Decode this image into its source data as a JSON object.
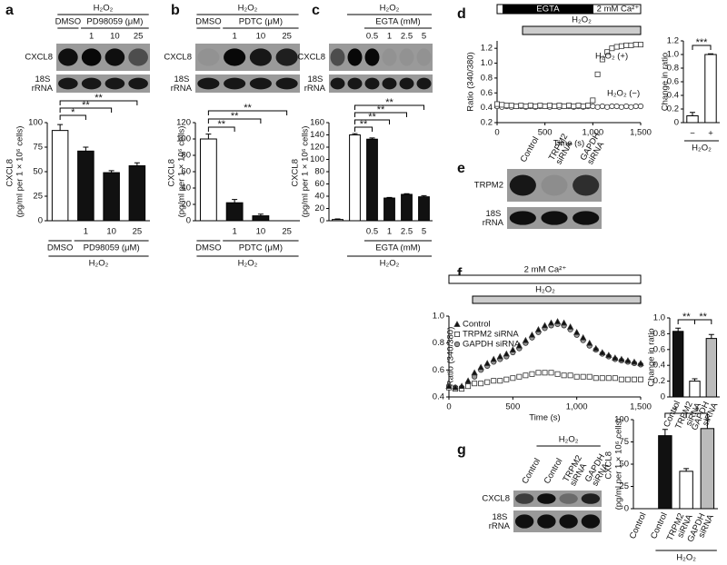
{
  "panels": [
    "a",
    "b",
    "c",
    "d",
    "e",
    "f",
    "g"
  ],
  "blots": [
    {
      "header": "H₂O₂",
      "groups": [
        "DMSO",
        "PD98059 (μM)"
      ],
      "lanes": [
        "1",
        "10",
        "25"
      ],
      "rows": [
        "CXCL8",
        "18S rRNA"
      ]
    },
    {
      "header": "H₂O₂",
      "groups": [
        "DMSO",
        "PDTC (μM)"
      ],
      "lanes": [
        "1",
        "10",
        "25"
      ],
      "rows": [
        "CXCL8",
        "18S rRNA"
      ]
    },
    {
      "header": "H₂O₂",
      "groups": [
        "EGTA (mM)"
      ],
      "lanes": [
        "0.5",
        "1",
        "2.5",
        "5"
      ],
      "rows": [
        "CXCL8",
        "18S rRNA"
      ]
    },
    {
      "lanes": [
        "Control",
        "TRPM2 siRNA",
        "GAPDH siRNA"
      ],
      "rows": [
        "TRPM2",
        "18S rRNA"
      ]
    },
    {
      "header": "H₂O₂",
      "lanes": [
        "Control",
        "Control",
        "TRPM2 siRNA",
        "GAPDH siRNA"
      ],
      "rows": [
        "CXCL8",
        "18S rRNA"
      ]
    }
  ],
  "chart_data": [
    {
      "type": "bar",
      "ylabel": "CXCL8 (pg/ml per 1 × 10⁶ cells)",
      "categories": [
        null,
        "1",
        "10",
        "25"
      ],
      "values": [
        92,
        71,
        49,
        56
      ],
      "errors": [
        6,
        4,
        2,
        3
      ],
      "colors": [
        "#ffffff",
        "#111111",
        "#111111",
        "#111111"
      ],
      "ylim": [
        0,
        100
      ],
      "yticks": [
        0,
        25,
        50,
        75,
        100
      ],
      "groups": [
        "DMSO",
        "PD98059 (μM)"
      ],
      "group_label": "H₂O₂",
      "significance": [
        "*",
        "**",
        "**"
      ]
    },
    {
      "type": "bar",
      "ylabel": "CXCL8 (pg/ml per 1 × 10⁶ cells)",
      "categories": [
        null,
        "1",
        "10",
        "25"
      ],
      "values": [
        100,
        22,
        6,
        0
      ],
      "errors": [
        6,
        4,
        2,
        0
      ],
      "colors": [
        "#ffffff",
        "#111111",
        "#111111",
        "#111111"
      ],
      "ylim": [
        0,
        120
      ],
      "yticks": [
        0,
        20,
        40,
        60,
        80,
        100,
        120
      ],
      "groups": [
        "DMSO",
        "PDTC (μM)"
      ],
      "group_label": "H₂O₂",
      "significance": [
        "**",
        "**",
        "**"
      ]
    },
    {
      "type": "bar",
      "ylabel": "CXCL8 (pg/ml per 1 × 10⁶ cells)",
      "categories": [
        null,
        null,
        "0.5",
        "1",
        "2.5",
        "5"
      ],
      "values": [
        2,
        140,
        133,
        37,
        43,
        39
      ],
      "errors": [
        1,
        2,
        2,
        1,
        1,
        2
      ],
      "colors": [
        "#ffffff",
        "#ffffff",
        "#111111",
        "#111111",
        "#111111",
        "#111111"
      ],
      "ylim": [
        0,
        160
      ],
      "yticks": [
        0,
        20,
        40,
        60,
        80,
        100,
        120,
        140,
        160
      ],
      "groups": [
        "EGTA (mM)"
      ],
      "group_label": "H₂O₂",
      "significance": [
        "**",
        "**",
        "**",
        "**"
      ]
    },
    {
      "type": "line",
      "xlabel": "Time (s)",
      "ylabel": "Ratio (340/380)",
      "annotations": [
        "EGTA",
        "2 mM Ca²⁺",
        "H₂O₂"
      ],
      "x": [
        0,
        50,
        100,
        150,
        200,
        250,
        300,
        350,
        400,
        450,
        500,
        550,
        600,
        650,
        700,
        750,
        800,
        850,
        900,
        950,
        1000,
        1050,
        1100,
        1150,
        1200,
        1250,
        1300,
        1350,
        1400,
        1450,
        1500
      ],
      "series": [
        {
          "name": "H₂O₂ (+)",
          "marker": "square",
          "color": "#ffffff",
          "values": [
            0.45,
            0.44,
            0.43,
            0.43,
            0.42,
            0.43,
            0.42,
            0.43,
            0.42,
            0.43,
            0.42,
            0.43,
            0.42,
            0.43,
            0.42,
            0.43,
            0.42,
            0.43,
            0.42,
            0.43,
            0.5,
            0.85,
            1.05,
            1.15,
            1.2,
            1.22,
            1.23,
            1.24,
            1.24,
            1.25,
            1.25
          ]
        },
        {
          "name": "H₂O₂ (−)",
          "marker": "circle",
          "color": "#ffffff",
          "values": [
            0.42,
            0.41,
            0.42,
            0.41,
            0.42,
            0.42,
            0.41,
            0.42,
            0.41,
            0.42,
            0.42,
            0.41,
            0.42,
            0.41,
            0.42,
            0.42,
            0.41,
            0.42,
            0.41,
            0.42,
            0.42,
            0.41,
            0.42,
            0.41,
            0.42,
            0.42,
            0.41,
            0.42,
            0.41,
            0.42,
            0.42
          ]
        }
      ],
      "xlim": [
        0,
        1500
      ],
      "xticks": [
        0,
        500,
        {
          "value": 1000,
          "label": "1,000"
        },
        {
          "value": 1500,
          "label": "1,500"
        }
      ],
      "ylim": [
        0.2,
        1.3
      ],
      "yticks": [
        0.2,
        0.4,
        0.6,
        0.8,
        {
          "value": 1.0,
          "label": "1.0"
        },
        1.2
      ]
    },
    {
      "type": "bar",
      "ylabel": "Change in ratio",
      "categories": [
        "−",
        "+"
      ],
      "values": [
        0.1,
        1.0
      ],
      "errors": [
        0.05,
        0.01
      ],
      "colors": [
        "#ffffff",
        "#ffffff"
      ],
      "ylim": [
        0,
        1.2
      ],
      "yticks": [
        0,
        0.2,
        0.4,
        0.6,
        0.8,
        {
          "value": 1.0,
          "label": "1.0"
        },
        1.2
      ],
      "group_label": "H₂O₂",
      "significance": [
        "***"
      ]
    },
    {
      "type": "line",
      "xlabel": "Time (s)",
      "ylabel": "Ratio (340/380)",
      "annotations": [
        "2 mM Ca²⁺",
        "H₂O₂"
      ],
      "x": [
        0,
        50,
        100,
        150,
        200,
        250,
        300,
        350,
        400,
        450,
        500,
        550,
        600,
        650,
        700,
        750,
        800,
        850,
        900,
        950,
        1000,
        1050,
        1100,
        1150,
        1200,
        1250,
        1300,
        1350,
        1400,
        1450,
        1500
      ],
      "series": [
        {
          "name": "Control",
          "marker": "triangle",
          "color": "#111111",
          "values": [
            0.48,
            0.47,
            0.48,
            0.52,
            0.58,
            0.62,
            0.65,
            0.68,
            0.7,
            0.72,
            0.75,
            0.78,
            0.82,
            0.86,
            0.9,
            0.93,
            0.95,
            0.96,
            0.95,
            0.92,
            0.88,
            0.84,
            0.8,
            0.76,
            0.73,
            0.71,
            0.69,
            0.68,
            0.67,
            0.66,
            0.65
          ]
        },
        {
          "name": "TRPM2 siRNA",
          "marker": "square",
          "color": "#ffffff",
          "values": [
            0.47,
            0.46,
            0.46,
            0.48,
            0.5,
            0.5,
            0.51,
            0.52,
            0.52,
            0.53,
            0.54,
            0.55,
            0.56,
            0.57,
            0.58,
            0.58,
            0.58,
            0.57,
            0.56,
            0.56,
            0.55,
            0.55,
            0.55,
            0.54,
            0.54,
            0.54,
            0.54,
            0.53,
            0.53,
            0.53,
            0.53
          ]
        },
        {
          "name": "GAPDH siRNA",
          "marker": "circle",
          "color": "#999999",
          "values": [
            0.48,
            0.47,
            0.47,
            0.5,
            0.55,
            0.6,
            0.63,
            0.66,
            0.68,
            0.7,
            0.73,
            0.76,
            0.8,
            0.84,
            0.88,
            0.91,
            0.93,
            0.94,
            0.93,
            0.9,
            0.86,
            0.82,
            0.78,
            0.75,
            0.72,
            0.7,
            0.68,
            0.67,
            0.66,
            0.65,
            0.64
          ]
        }
      ],
      "xlim": [
        0,
        1500
      ],
      "xticks": [
        0,
        500,
        {
          "value": 1000,
          "label": "1,000"
        },
        {
          "value": 1500,
          "label": "1,500"
        }
      ],
      "ylim": [
        0.4,
        1.0
      ],
      "yticks": [
        0.4,
        0.6,
        0.8,
        {
          "value": 1.0,
          "label": "1.0"
        }
      ],
      "legend": "upper left"
    },
    {
      "type": "bar",
      "ylabel": "Change in ratio",
      "categories": [
        "Control",
        "TRPM2 siRNA",
        "GAPDH siRNA"
      ],
      "values": [
        0.83,
        0.2,
        0.74
      ],
      "errors": [
        0.04,
        0.03,
        0.05
      ],
      "colors": [
        "#111111",
        "#ffffff",
        "#bbbbbb"
      ],
      "ylim": [
        0,
        1.0
      ],
      "yticks": [
        0,
        0.2,
        0.4,
        0.6,
        0.8,
        {
          "value": 1.0,
          "label": "1.0"
        }
      ],
      "significance": [
        "**",
        "**"
      ]
    },
    {
      "type": "bar",
      "ylabel": "CXCL8 (pg/ml per 1 × 10⁶ cells)",
      "categories": [
        "Control",
        "Control",
        "TRPM2 siRNA",
        "GAPDH siRNA"
      ],
      "values": [
        0,
        82,
        42,
        90
      ],
      "errors": [
        0,
        7,
        3,
        10
      ],
      "colors": [
        "#111111",
        "#111111",
        "#ffffff",
        "#bbbbbb"
      ],
      "ylim": [
        0,
        100
      ],
      "yticks": [
        0,
        25,
        50,
        75,
        100
      ],
      "group_label": "H₂O₂",
      "significance": [
        "*",
        "*"
      ]
    }
  ]
}
